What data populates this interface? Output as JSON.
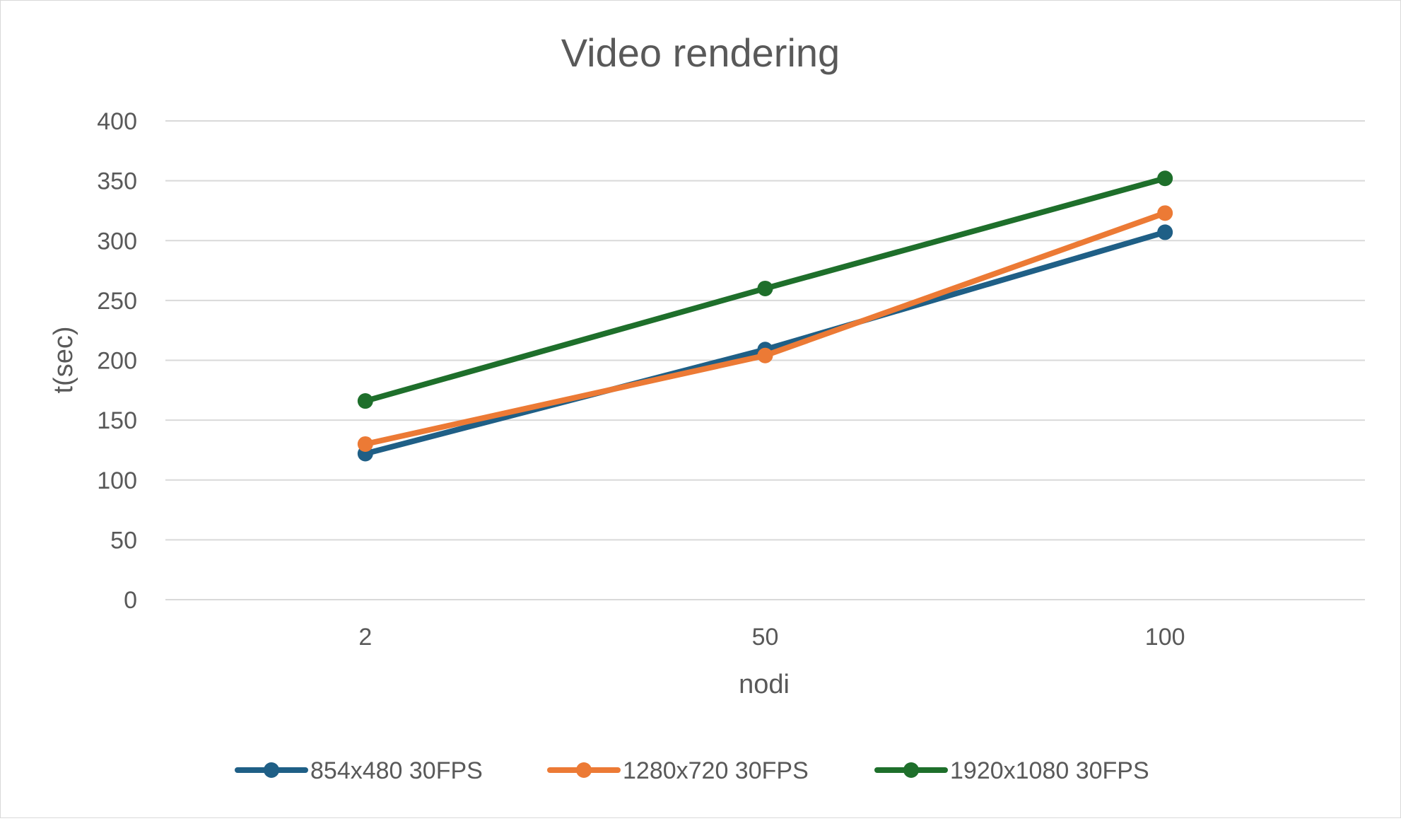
{
  "chart_data": {
    "type": "line",
    "title": "Video rendering",
    "xlabel": "nodi",
    "ylabel": "t(sec)",
    "categories": [
      "2",
      "50",
      "100"
    ],
    "ylim": [
      0,
      400
    ],
    "yticks": [
      0,
      50,
      100,
      150,
      200,
      250,
      300,
      350,
      400
    ],
    "grid": true,
    "legend_position": "bottom",
    "series": [
      {
        "name": "854x480 30FPS",
        "color": "#1f5f86",
        "values": [
          122,
          209,
          307
        ]
      },
      {
        "name": "1280x720 30FPS",
        "color": "#ec7a35",
        "values": [
          130,
          204,
          323
        ]
      },
      {
        "name": "1920x1080 30FPS",
        "color": "#1e6f2b",
        "values": [
          166,
          260,
          352
        ]
      }
    ]
  }
}
